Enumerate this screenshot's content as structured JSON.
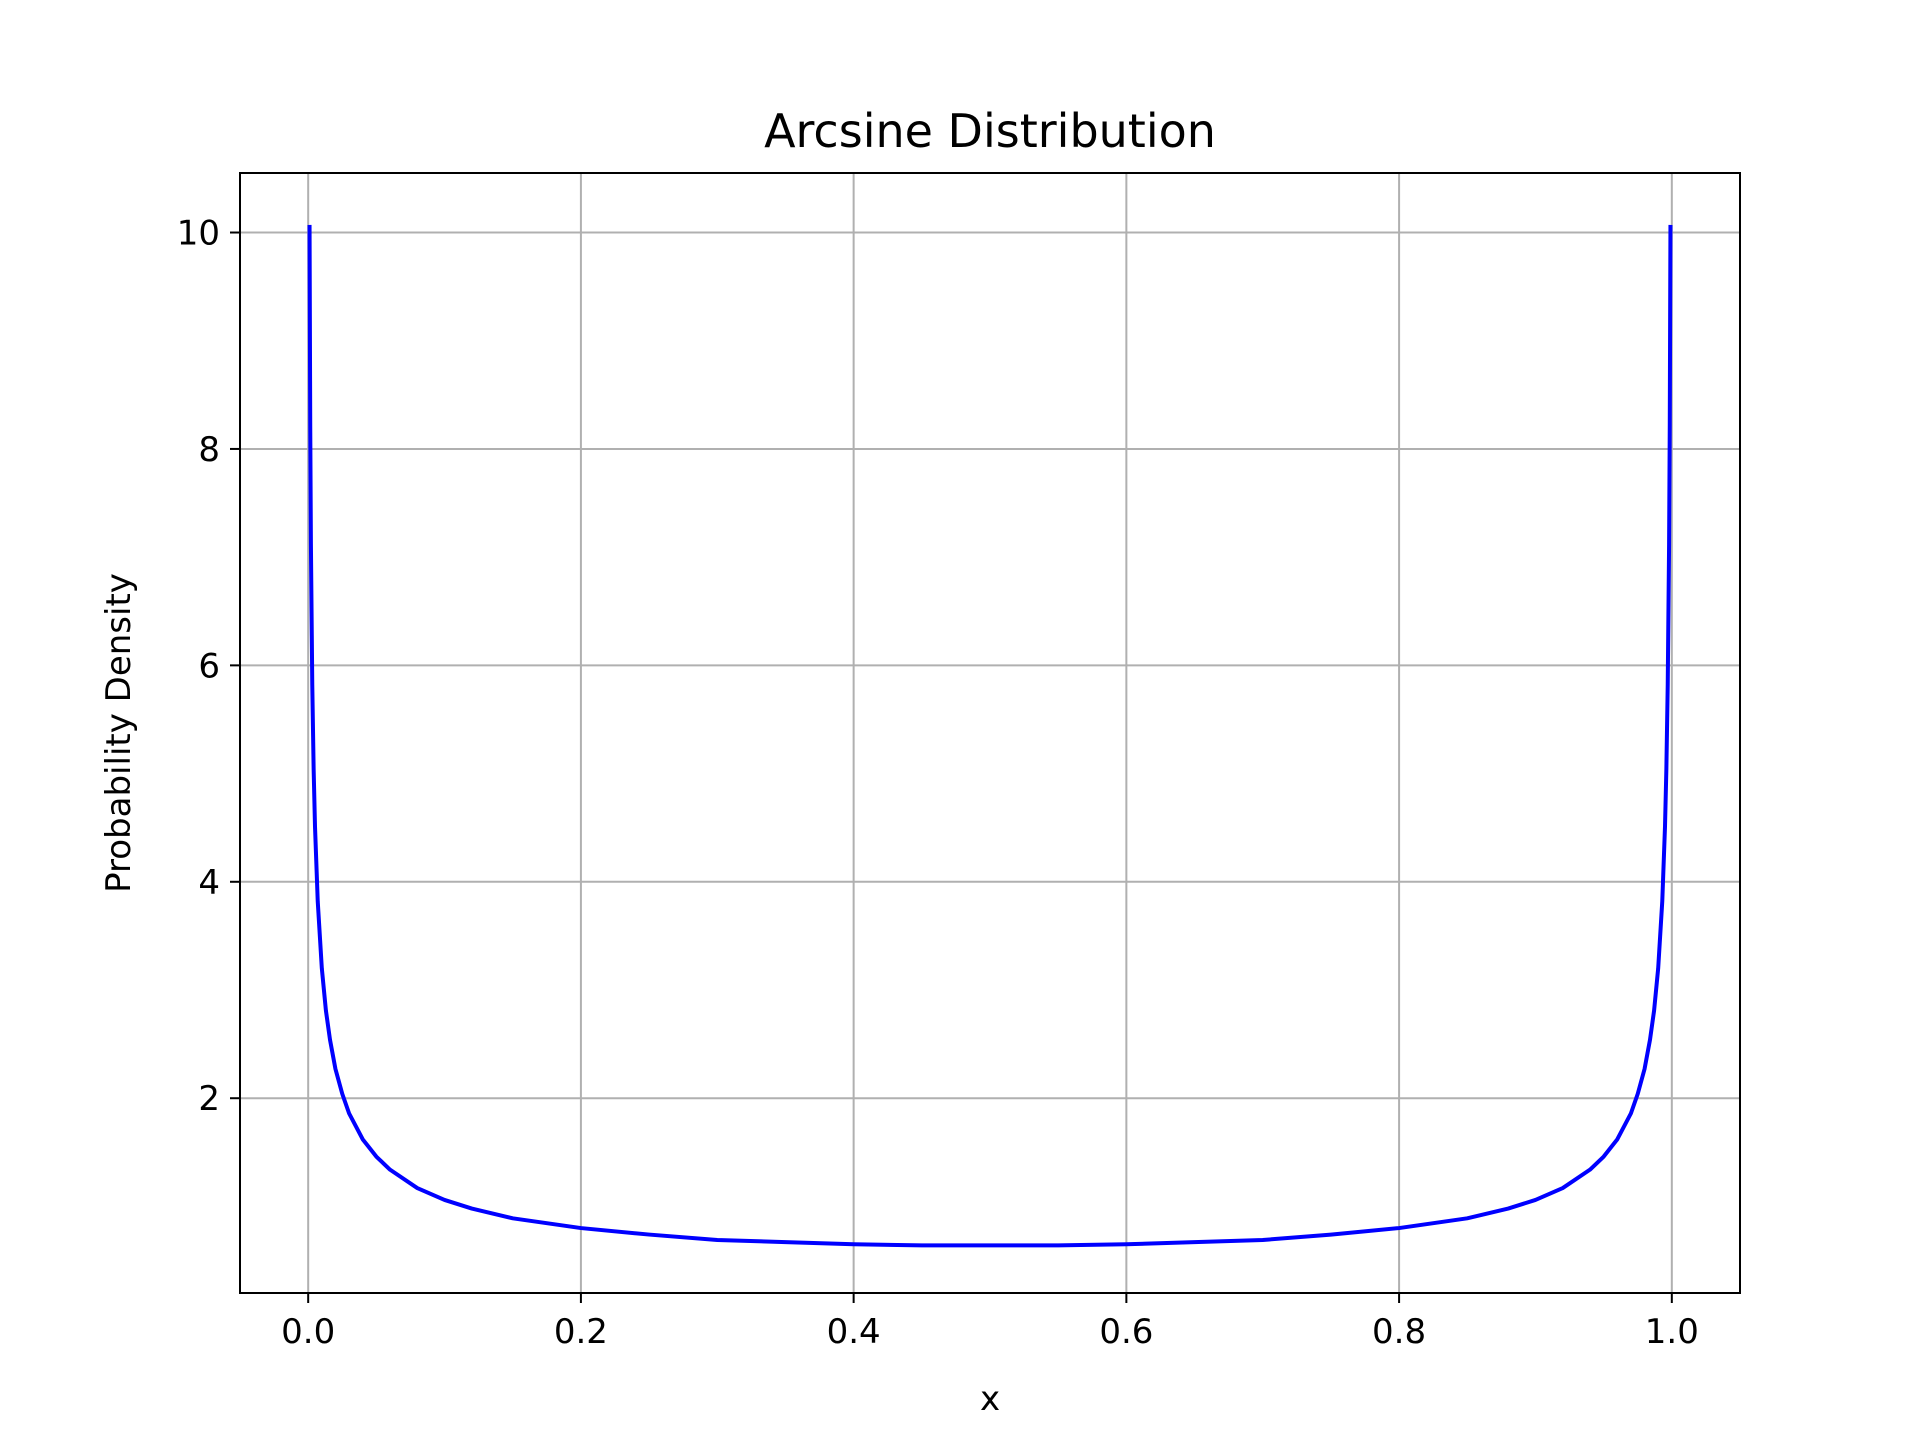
{
  "chart_data": {
    "type": "line",
    "title": "Arcsine Distribution",
    "xlabel": "x",
    "ylabel": "Probability Density",
    "xlim": [
      -0.05,
      1.05
    ],
    "ylim": [
      0.2,
      10.55
    ],
    "xticks": [
      0.0,
      0.2,
      0.4,
      0.6,
      0.8,
      1.0
    ],
    "xtick_labels": [
      "0.0",
      "0.2",
      "0.4",
      "0.6",
      "0.8",
      "1.0"
    ],
    "yticks": [
      2,
      4,
      6,
      8,
      10
    ],
    "ytick_labels": [
      "2",
      "4",
      "6",
      "8",
      "10"
    ],
    "grid": true,
    "series": [
      {
        "color": "#0000ff",
        "x": [
          0.001,
          0.0015,
          0.002,
          0.003,
          0.004,
          0.005,
          0.007,
          0.01,
          0.013,
          0.016,
          0.02,
          0.025,
          0.03,
          0.04,
          0.05,
          0.06,
          0.08,
          0.1,
          0.12,
          0.15,
          0.2,
          0.25,
          0.3,
          0.35,
          0.4,
          0.45,
          0.5,
          0.55,
          0.6,
          0.65,
          0.7,
          0.75,
          0.8,
          0.85,
          0.88,
          0.9,
          0.92,
          0.94,
          0.95,
          0.96,
          0.97,
          0.975,
          0.98,
          0.984,
          0.987,
          0.99,
          0.993,
          0.995,
          0.996,
          0.997,
          0.998,
          0.9985,
          0.999
        ],
        "y": [
          10.07,
          8.22,
          7.12,
          5.82,
          5.04,
          4.51,
          3.82,
          3.2,
          2.81,
          2.54,
          2.27,
          2.04,
          1.86,
          1.62,
          1.46,
          1.34,
          1.17,
          1.06,
          0.98,
          0.89,
          0.8,
          0.74,
          0.69,
          0.67,
          0.65,
          0.64,
          0.64,
          0.64,
          0.65,
          0.67,
          0.69,
          0.74,
          0.8,
          0.89,
          0.98,
          1.06,
          1.17,
          1.34,
          1.46,
          1.62,
          1.86,
          2.04,
          2.27,
          2.54,
          2.81,
          3.2,
          3.82,
          4.51,
          5.04,
          5.82,
          7.12,
          8.22,
          10.07
        ]
      }
    ]
  }
}
